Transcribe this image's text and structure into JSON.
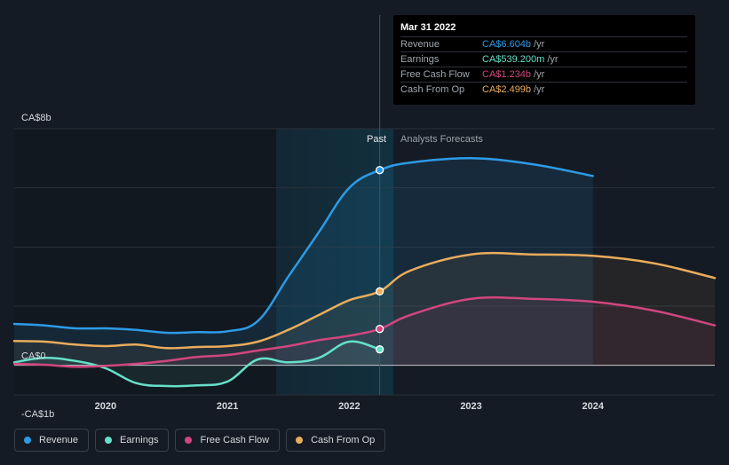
{
  "chart_data": {
    "type": "line",
    "title": "",
    "y_unit": "CA$b",
    "ylim": [
      -1,
      8
    ],
    "xlim": [
      2019.25,
      2025.0
    ],
    "y_axis_labels": [
      {
        "value": 8,
        "label": "CA$8b"
      },
      {
        "value": 0,
        "label": "CA$0"
      },
      {
        "value": -1,
        "label": "-CA$1b"
      }
    ],
    "x_ticks": [
      {
        "value": 2020,
        "label": "2020"
      },
      {
        "value": 2021,
        "label": "2021"
      },
      {
        "value": 2022,
        "label": "2022"
      },
      {
        "value": 2023,
        "label": "2023"
      },
      {
        "value": 2024,
        "label": "2024"
      }
    ],
    "past_label": "Past",
    "forecast_label": "Analysts Forecasts",
    "divider_x": 2022.25,
    "highlight_start": 2021.25,
    "series": [
      {
        "name": "Revenue",
        "key": "revenue",
        "color": "#2d9be6",
        "x": [
          2019.25,
          2019.5,
          2019.75,
          2020.0,
          2020.25,
          2020.5,
          2020.75,
          2021.0,
          2021.25,
          2021.5,
          2021.75,
          2022.0,
          2022.25,
          2022.5,
          2023.0,
          2023.5,
          2024.0
        ],
        "values": [
          1.4,
          1.35,
          1.25,
          1.25,
          1.2,
          1.1,
          1.12,
          1.15,
          1.5,
          3.0,
          4.5,
          6.0,
          6.6,
          6.85,
          7.0,
          6.8,
          6.4
        ]
      },
      {
        "name": "Earnings",
        "key": "earnings",
        "color": "#66e0c9",
        "x": [
          2019.25,
          2019.5,
          2019.75,
          2020.0,
          2020.25,
          2020.5,
          2020.75,
          2021.0,
          2021.25,
          2021.5,
          2021.75,
          2022.0,
          2022.25
        ],
        "values": [
          0.1,
          0.25,
          0.15,
          -0.1,
          -0.6,
          -0.7,
          -0.68,
          -0.55,
          0.2,
          0.1,
          0.25,
          0.8,
          0.54
        ]
      },
      {
        "name": "Free Cash Flow",
        "key": "fcf",
        "color": "#d1467f",
        "x": [
          2019.25,
          2019.5,
          2019.75,
          2020.0,
          2020.25,
          2020.5,
          2020.75,
          2021.0,
          2021.25,
          2021.5,
          2021.75,
          2022.0,
          2022.25,
          2022.5,
          2023.0,
          2023.5,
          2024.0,
          2024.5,
          2025.0
        ],
        "values": [
          0.05,
          0.02,
          -0.05,
          -0.02,
          0.05,
          0.15,
          0.28,
          0.35,
          0.5,
          0.65,
          0.85,
          1.0,
          1.23,
          1.7,
          2.25,
          2.25,
          2.15,
          1.85,
          1.35
        ]
      },
      {
        "name": "Cash From Op",
        "key": "cfo",
        "color": "#e9ac5c",
        "x": [
          2019.25,
          2019.5,
          2019.75,
          2020.0,
          2020.25,
          2020.5,
          2020.75,
          2021.0,
          2021.25,
          2021.5,
          2021.75,
          2022.0,
          2022.25,
          2022.5,
          2023.0,
          2023.5,
          2024.0,
          2024.5,
          2025.0
        ],
        "values": [
          0.82,
          0.8,
          0.7,
          0.65,
          0.7,
          0.58,
          0.62,
          0.65,
          0.8,
          1.2,
          1.7,
          2.2,
          2.5,
          3.2,
          3.75,
          3.75,
          3.7,
          3.45,
          2.95
        ]
      }
    ],
    "markers": [
      {
        "series": "revenue",
        "x": 2022.25,
        "value": 6.6
      },
      {
        "series": "earnings",
        "x": 2022.25,
        "value": 0.54
      },
      {
        "series": "fcf",
        "x": 2022.25,
        "value": 1.23
      },
      {
        "series": "cfo",
        "x": 2022.25,
        "value": 2.5
      }
    ]
  },
  "tooltip": {
    "date": "Mar 31 2022",
    "rows": [
      {
        "label": "Revenue",
        "value": "CA$6.604b",
        "unit": "/yr",
        "color": "#2d9be6"
      },
      {
        "label": "Earnings",
        "value": "CA$539.200m",
        "unit": "/yr",
        "color": "#66e0c9"
      },
      {
        "label": "Free Cash Flow",
        "value": "CA$1.234b",
        "unit": "/yr",
        "color": "#d1467f"
      },
      {
        "label": "Cash From Op",
        "value": "CA$2.499b",
        "unit": "/yr",
        "color": "#e9ac5c"
      }
    ]
  },
  "legend": [
    {
      "label": "Revenue",
      "color": "#2d9be6"
    },
    {
      "label": "Earnings",
      "color": "#66e0c9"
    },
    {
      "label": "Free Cash Flow",
      "color": "#d1467f"
    },
    {
      "label": "Cash From Op",
      "color": "#e9ac5c"
    }
  ]
}
